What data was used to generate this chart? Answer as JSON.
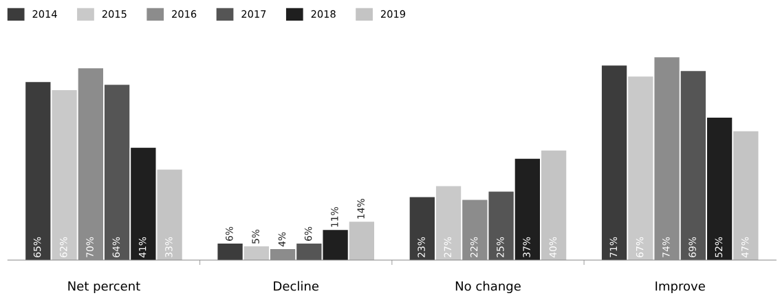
{
  "chart_data": {
    "type": "bar",
    "categories": [
      "Net percent",
      "Decline",
      "No change",
      "Improve"
    ],
    "series": [
      {
        "name": "2014",
        "color": "#3c3c3c",
        "values": [
          65,
          6,
          23,
          71
        ],
        "value_labels": [
          "65%",
          "6%",
          "23%",
          "71%"
        ]
      },
      {
        "name": "2015",
        "color": "#c9c9c9",
        "values": [
          62,
          5,
          27,
          67
        ],
        "value_labels": [
          "62%",
          "5%",
          "27%",
          "67%"
        ]
      },
      {
        "name": "2016",
        "color": "#8c8c8c",
        "values": [
          70,
          4,
          22,
          74
        ],
        "value_labels": [
          "70%",
          "4%",
          "22%",
          "74%"
        ]
      },
      {
        "name": "2017",
        "color": "#555555",
        "values": [
          64,
          6,
          25,
          69
        ],
        "value_labels": [
          "64%",
          "6%",
          "25%",
          "69%"
        ]
      },
      {
        "name": "2018",
        "color": "#1f1f1f",
        "values": [
          41,
          11,
          37,
          52
        ],
        "value_labels": [
          "41%",
          "11%",
          "37%",
          "52%"
        ]
      },
      {
        "name": "2019",
        "color": "#c4c4c4",
        "values": [
          33,
          14,
          40,
          47
        ],
        "value_labels": [
          "33%",
          "14%",
          "40%",
          "47%"
        ]
      }
    ],
    "legend": "top left",
    "tick_labels": "x",
    "grid": false
  }
}
